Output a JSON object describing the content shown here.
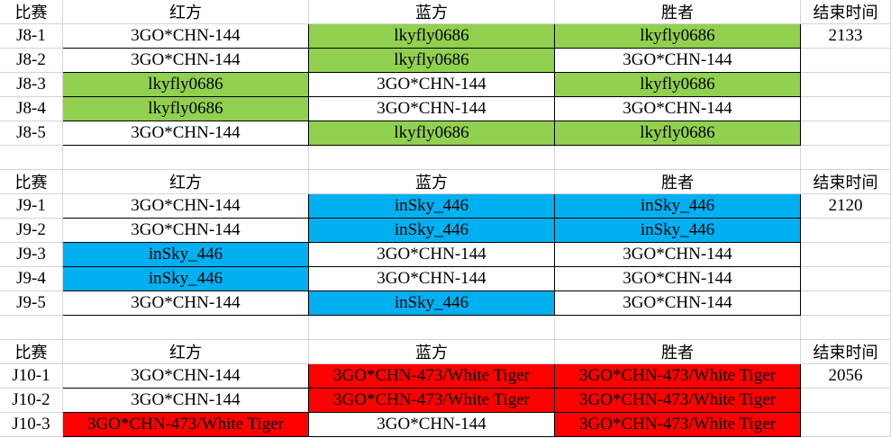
{
  "blocks": [
    {
      "headers": {
        "game": "比赛",
        "red": "红方",
        "blue": "蓝方",
        "winner": "胜者",
        "end_time": "结束时间"
      },
      "end_time": "2133",
      "highlight_color": "#92d050",
      "highlight_player": "lkyfly0686",
      "rows": [
        {
          "game": "J8-1",
          "red": "3GO*CHN-144",
          "blue": "lkyfly0686",
          "winner": "lkyfly0686"
        },
        {
          "game": "J8-2",
          "red": "3GO*CHN-144",
          "blue": "lkyfly0686",
          "winner": "3GO*CHN-144"
        },
        {
          "game": "J8-3",
          "red": "lkyfly0686",
          "blue": "3GO*CHN-144",
          "winner": "lkyfly0686"
        },
        {
          "game": "J8-4",
          "red": "lkyfly0686",
          "blue": "3GO*CHN-144",
          "winner": "3GO*CHN-144"
        },
        {
          "game": "J8-5",
          "red": "3GO*CHN-144",
          "blue": "lkyfly0686",
          "winner": "lkyfly0686"
        }
      ]
    },
    {
      "headers": {
        "game": "比赛",
        "red": "红方",
        "blue": "蓝方",
        "winner": "胜者",
        "end_time": "结束时间"
      },
      "end_time": "2120",
      "highlight_color": "#00b0f0",
      "highlight_player": "inSky_446",
      "rows": [
        {
          "game": "J9-1",
          "red": "3GO*CHN-144",
          "blue": "inSky_446",
          "winner": "inSky_446"
        },
        {
          "game": "J9-2",
          "red": "3GO*CHN-144",
          "blue": "inSky_446",
          "winner": "inSky_446"
        },
        {
          "game": "J9-3",
          "red": "inSky_446",
          "blue": "3GO*CHN-144",
          "winner": "3GO*CHN-144"
        },
        {
          "game": "J9-4",
          "red": "inSky_446",
          "blue": "3GO*CHN-144",
          "winner": "3GO*CHN-144"
        },
        {
          "game": "J9-5",
          "red": "3GO*CHN-144",
          "blue": "inSky_446",
          "winner": "3GO*CHN-144"
        }
      ]
    },
    {
      "headers": {
        "game": "比赛",
        "red": "红方",
        "blue": "蓝方",
        "winner": "胜者",
        "end_time": "结束时间"
      },
      "end_time": "2056",
      "highlight_color": "#ff0000",
      "highlight_player": "3GO*CHN-473/White Tiger",
      "rows": [
        {
          "game": "J10-1",
          "red": "3GO*CHN-144",
          "blue": "3GO*CHN-473/White Tiger",
          "winner": "3GO*CHN-473/White Tiger"
        },
        {
          "game": "J10-2",
          "red": "3GO*CHN-144",
          "blue": "3GO*CHN-473/White Tiger",
          "winner": "3GO*CHN-473/White Tiger"
        },
        {
          "game": "J10-3",
          "red": "3GO*CHN-473/White Tiger",
          "blue": "3GO*CHN-144",
          "winner": "3GO*CHN-473/White Tiger"
        }
      ]
    }
  ]
}
